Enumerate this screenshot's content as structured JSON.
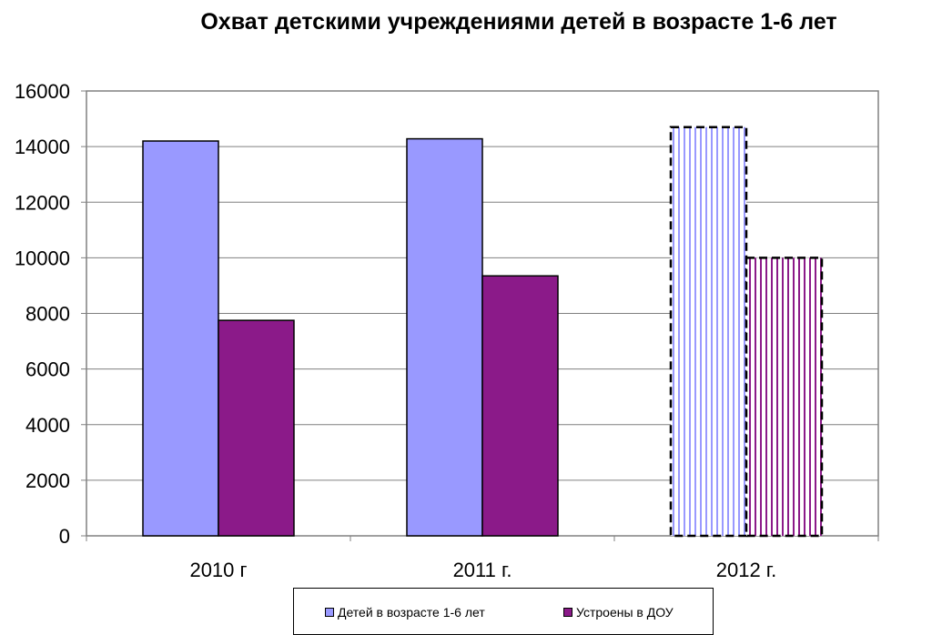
{
  "chart_data": {
    "type": "bar",
    "title": "Охват детскими учреждениями детей в возрасте 1-6 лет",
    "categories": [
      "2010 г",
      "2011 г.",
      "2012 г."
    ],
    "series": [
      {
        "name": "Детей в возрасте 1-6 лет",
        "values": [
          14200,
          14280,
          14700
        ],
        "color": "#9999ff",
        "projected": [
          false,
          false,
          true
        ]
      },
      {
        "name": "Устроены в ДОУ",
        "values": [
          7750,
          9350,
          10000
        ],
        "color": "#8b1a89",
        "projected": [
          false,
          false,
          true
        ]
      }
    ],
    "ylim": [
      0,
      16000
    ],
    "yticks": [
      0,
      2000,
      4000,
      6000,
      8000,
      10000,
      12000,
      14000,
      16000
    ],
    "grid": true,
    "legend_position": "bottom"
  }
}
